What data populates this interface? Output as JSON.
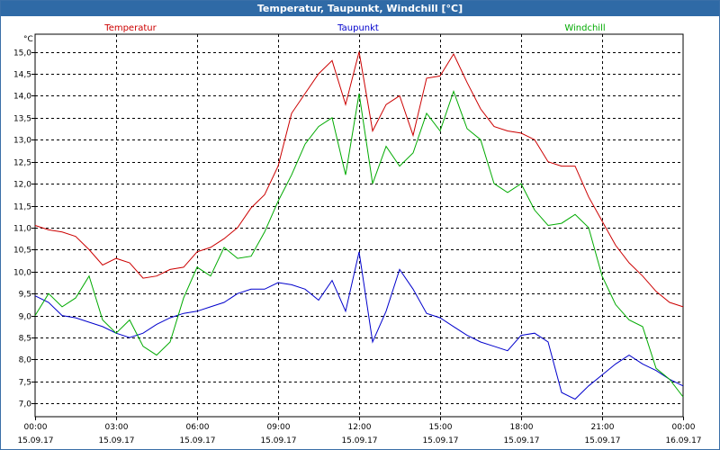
{
  "window": {
    "title": "Temperatur, Taupunkt, Windchill [°C]"
  },
  "chart_data": {
    "type": "line",
    "title": "Temperatur, Taupunkt, Windchill [°C]",
    "ylabel": "°C",
    "ylim": [
      6.7,
      15.4
    ],
    "y_ticks": [
      "7,0",
      "7,5",
      "8,0",
      "8,5",
      "9,0",
      "9,5",
      "10,0",
      "10,5",
      "11,0",
      "11,5",
      "12,0",
      "12,5",
      "13,0",
      "13,5",
      "14,0",
      "14,5",
      "15,0"
    ],
    "y_tick_values": [
      7.0,
      7.5,
      8.0,
      8.5,
      9.0,
      9.5,
      10.0,
      10.5,
      11.0,
      11.5,
      12.0,
      12.5,
      13.0,
      13.5,
      14.0,
      14.5,
      15.0
    ],
    "xlim": [
      0,
      24
    ],
    "x_ticks": [
      {
        "hour": 0,
        "time": "00:00",
        "date": "15.09.17"
      },
      {
        "hour": 3,
        "time": "03:00",
        "date": "15.09.17"
      },
      {
        "hour": 6,
        "time": "06:00",
        "date": "15.09.17"
      },
      {
        "hour": 9,
        "time": "09:00",
        "date": "15.09.17"
      },
      {
        "hour": 12,
        "time": "12:00",
        "date": "15.09.17"
      },
      {
        "hour": 15,
        "time": "15:00",
        "date": "15.09.17"
      },
      {
        "hour": 18,
        "time": "18:00",
        "date": "15.09.17"
      },
      {
        "hour": 21,
        "time": "21:00",
        "date": "15.09.17"
      },
      {
        "hour": 24,
        "time": "00:00",
        "date": "16.09.17"
      }
    ],
    "grid": true,
    "legend_position": "top",
    "series": [
      {
        "name": "Temperatur",
        "color": "#cc0000",
        "x": [
          0,
          0.5,
          1,
          1.5,
          2,
          2.5,
          3,
          3.5,
          4,
          4.5,
          5,
          5.5,
          6,
          6.5,
          7,
          7.5,
          8,
          8.5,
          9,
          9.5,
          10,
          10.5,
          11,
          11.5,
          12,
          12.5,
          13,
          13.5,
          14,
          14.5,
          15,
          15.5,
          16,
          16.5,
          17,
          17.5,
          18,
          18.5,
          19,
          19.5,
          20,
          20.5,
          21,
          21.5,
          22,
          22.5,
          23,
          23.5,
          24
        ],
        "values": [
          11.05,
          10.95,
          10.9,
          10.8,
          10.5,
          10.15,
          10.3,
          10.2,
          9.85,
          9.9,
          10.05,
          10.1,
          10.45,
          10.55,
          10.75,
          11.0,
          11.45,
          11.75,
          12.4,
          13.6,
          14.05,
          14.5,
          14.8,
          13.8,
          15.0,
          13.2,
          13.8,
          14.0,
          13.1,
          14.4,
          14.45,
          14.95,
          14.3,
          13.7,
          13.3,
          13.2,
          13.15,
          13.0,
          12.5,
          12.4,
          12.4,
          11.7,
          11.15,
          10.6,
          10.2,
          9.9,
          9.55,
          9.3,
          9.2
        ]
      },
      {
        "name": "Taupunkt",
        "color": "#0000cc",
        "x": [
          0,
          0.5,
          1,
          1.5,
          2,
          2.5,
          3,
          3.5,
          4,
          4.5,
          5,
          5.5,
          6,
          6.5,
          7,
          7.5,
          8,
          8.5,
          9,
          9.5,
          10,
          10.5,
          11,
          11.5,
          12,
          12.5,
          13,
          13.5,
          14,
          14.5,
          15,
          15.5,
          16,
          16.5,
          17,
          17.5,
          18,
          18.5,
          19,
          19.5,
          20,
          20.5,
          21,
          21.5,
          22,
          22.5,
          23,
          23.5,
          24
        ],
        "values": [
          9.45,
          9.3,
          9.0,
          8.95,
          8.85,
          8.75,
          8.6,
          8.5,
          8.6,
          8.8,
          8.95,
          9.05,
          9.1,
          9.2,
          9.3,
          9.5,
          9.6,
          9.6,
          9.75,
          9.7,
          9.6,
          9.35,
          9.8,
          9.1,
          10.45,
          8.4,
          9.1,
          10.05,
          9.6,
          9.05,
          8.95,
          8.75,
          8.55,
          8.4,
          8.3,
          8.2,
          8.55,
          8.6,
          8.4,
          7.25,
          7.1,
          7.4,
          7.65,
          7.9,
          8.1,
          7.9,
          7.75,
          7.55,
          7.4
        ]
      },
      {
        "name": "Windchill",
        "color": "#00aa00",
        "x": [
          0,
          0.5,
          1,
          1.5,
          2,
          2.5,
          3,
          3.5,
          4,
          4.5,
          5,
          5.5,
          6,
          6.5,
          7,
          7.5,
          8,
          8.5,
          9,
          9.5,
          10,
          10.5,
          11,
          11.5,
          12,
          12.5,
          13,
          13.5,
          14,
          14.5,
          15,
          15.5,
          16,
          16.5,
          17,
          17.5,
          18,
          18.5,
          19,
          19.5,
          20,
          20.5,
          21,
          21.5,
          22,
          22.5,
          23,
          23.5,
          24
        ],
        "values": [
          9.0,
          9.5,
          9.2,
          9.4,
          9.9,
          8.9,
          8.6,
          8.9,
          8.3,
          8.1,
          8.4,
          9.4,
          10.1,
          9.9,
          10.55,
          10.3,
          10.35,
          10.9,
          11.6,
          12.2,
          12.9,
          13.3,
          13.5,
          12.2,
          14.05,
          12.0,
          12.85,
          12.4,
          12.7,
          13.6,
          13.2,
          14.1,
          13.25,
          13.0,
          12.0,
          11.8,
          12.0,
          11.4,
          11.05,
          11.1,
          11.3,
          11.0,
          9.9,
          9.25,
          8.9,
          8.75,
          7.8,
          7.55,
          7.15
        ]
      }
    ]
  }
}
